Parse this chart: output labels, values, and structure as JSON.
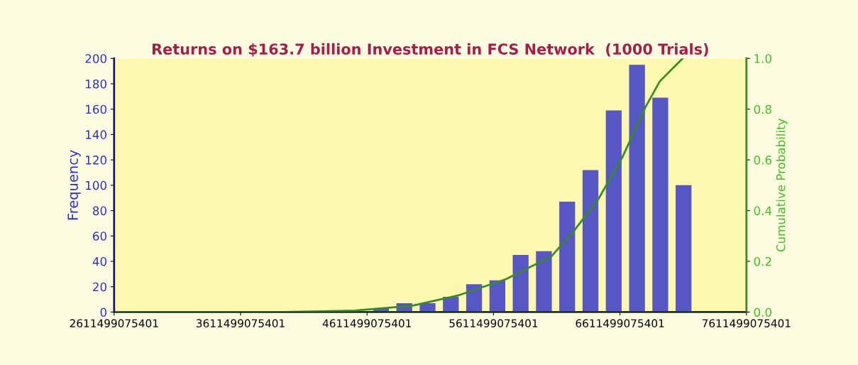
{
  "chart_data": {
    "type": "histogram",
    "title": "Returns on $163.7 billion Investment in FCS Network  (1000 Trials)",
    "ylabel": "Frequency",
    "y2label": "Cumulative Probability",
    "series": [
      {
        "color": "#5656c4",
        "bins": [
          4630000000000,
          4814000000000,
          4998000000000,
          5182000000000,
          5366000000000,
          5550000000000,
          5734000000000,
          5918000000000,
          6102000000000,
          6286000000000,
          6470000000000,
          6654000000000,
          6838000000000,
          7022000000000,
          7206000000000
        ],
        "values": [
          3,
          7,
          7,
          12,
          22,
          25,
          45,
          48,
          87,
          112,
          159,
          195,
          169,
          100
        ]
      },
      {
        "type": "line",
        "axis": "y2",
        "color": "#3a8a2a",
        "x": [
          2611499075401,
          3957000000000,
          4517000000000,
          4966000000000,
          5341000000000,
          5711000000000,
          6070000000000,
          6255000000000,
          6440000000000,
          6630000000000,
          6815000000000,
          6927000000000,
          7107000000000
        ],
        "values": [
          0,
          0,
          0.006,
          0.025,
          0.067,
          0.13,
          0.22,
          0.325,
          0.445,
          0.61,
          0.81,
          0.91,
          1.0
        ]
      }
    ],
    "xlim": [
      2611499075401,
      7611499075401
    ],
    "xticks": [
      {
        "value": 2611499075401,
        "label": "2611499075401"
      },
      {
        "value": 3611499075401,
        "label": "3611499075401"
      },
      {
        "value": 4611499075401,
        "label": "4611499075401"
      },
      {
        "value": 5611499075401,
        "label": "5611499075401"
      },
      {
        "value": 6611499075401,
        "label": "6611499075401"
      },
      {
        "value": 7611499075401,
        "label": "7611499075401"
      }
    ],
    "ylim": [
      0,
      200
    ],
    "yticks": [
      0,
      20,
      40,
      60,
      80,
      100,
      120,
      140,
      160,
      180,
      200
    ],
    "y2lim": [
      0,
      1.0
    ],
    "y2ticks": [
      {
        "value": 0,
        "label": "0.0"
      },
      {
        "value": 0.2,
        "label": "0.2"
      },
      {
        "value": 0.4,
        "label": "0.4"
      },
      {
        "value": 0.6,
        "label": "0.6"
      },
      {
        "value": 0.8,
        "label": "0.8"
      },
      {
        "value": 1.0,
        "label": "1.0"
      }
    ],
    "grid": false
  }
}
